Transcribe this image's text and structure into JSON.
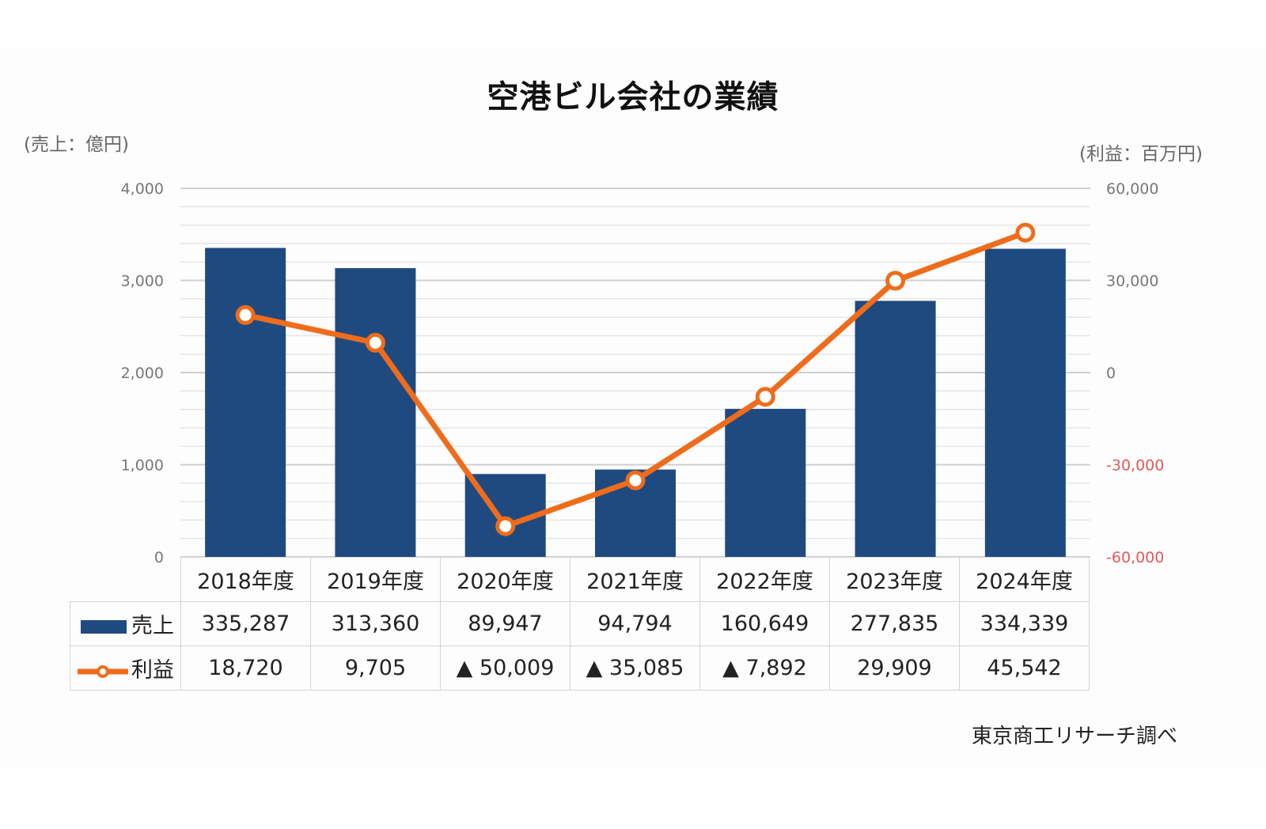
{
  "title": "空港ビル会社の業績",
  "left_unit": "(売上：億円)",
  "right_unit": "(利益：百万円)",
  "source": "東京商工リサーチ調べ",
  "colors": {
    "bar": "#1f4a7f",
    "line": "#ee6c1b",
    "negative_tick": "#e05a5a",
    "grid": "#d9d9d9"
  },
  "left_ticks": [
    "0",
    "1,000",
    "2,000",
    "3,000",
    "4,000"
  ],
  "right_ticks": [
    "-60,000",
    "-30,000",
    "0",
    "30,000",
    "60,000"
  ],
  "table": {
    "columns": [
      "2018年度",
      "2019年度",
      "2020年度",
      "2021年度",
      "2022年度",
      "2023年度",
      "2024年度"
    ],
    "rows": [
      {
        "label": "売上",
        "legend": "bar",
        "values": [
          "335,287",
          "313,360",
          "89,947",
          "94,794",
          "160,649",
          "277,835",
          "334,339"
        ]
      },
      {
        "label": "利益",
        "legend": "line",
        "values": [
          "18,720",
          "9,705",
          "▲ 50,009",
          "▲ 35,085",
          "▲ 7,892",
          "29,909",
          "45,542"
        ]
      }
    ]
  },
  "chart_data": {
    "type": "bar+line",
    "title": "空港ビル会社の業績",
    "categories": [
      "2018年度",
      "2019年度",
      "2020年度",
      "2021年度",
      "2022年度",
      "2023年度",
      "2024年度"
    ],
    "series": [
      {
        "name": "売上",
        "type": "bar",
        "axis": "left",
        "unit": "百万円 (table) / 億円 (axis)",
        "values": [
          335287,
          313360,
          89947,
          94794,
          160649,
          277835,
          334339
        ]
      },
      {
        "name": "利益",
        "type": "line",
        "axis": "right",
        "unit": "百万円",
        "values": [
          18720,
          9705,
          -50009,
          -35085,
          -7892,
          29909,
          45542
        ]
      }
    ],
    "ylabel_left": "売上：億円",
    "ylabel_right": "利益：百万円",
    "ylim_left": [
      0,
      4000
    ],
    "ylim_right": [
      -60000,
      60000
    ],
    "left_ticks": [
      0,
      1000,
      2000,
      3000,
      4000
    ],
    "right_ticks": [
      -60000,
      -30000,
      0,
      30000,
      60000
    ],
    "grid": true,
    "legend_position": "data-table",
    "annotation": "東京商工リサーチ調べ"
  }
}
